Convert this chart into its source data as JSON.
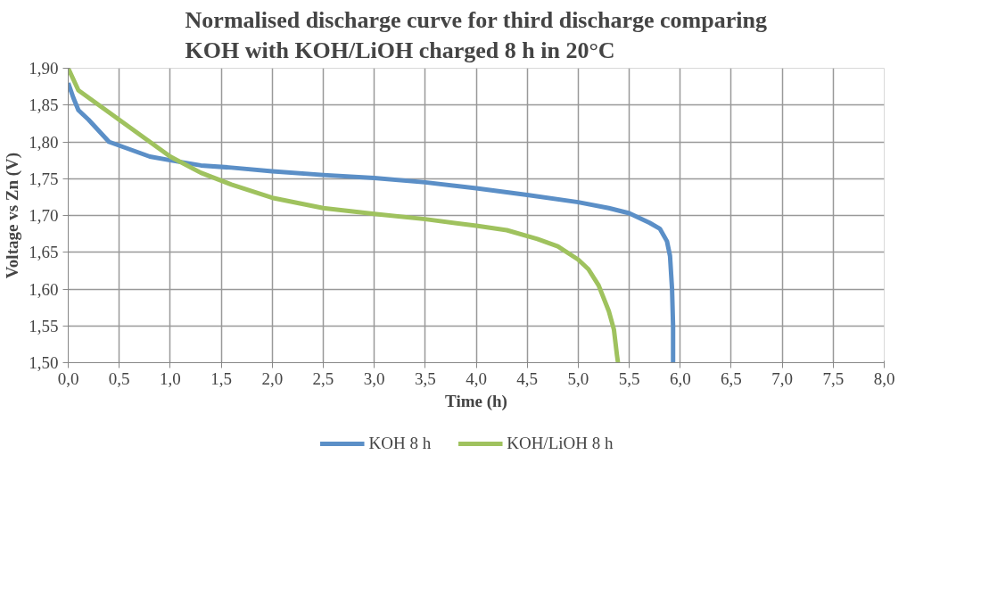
{
  "chart_data": {
    "type": "line",
    "title": "Normalised discharge curve for third discharge comparing\nKOH with KOH/LiOH charged 8 h in 20°C",
    "xlabel": "Time (h)",
    "ylabel": "Voltage vs Zn (V)",
    "xlim": [
      0,
      8
    ],
    "ylim": [
      1.5,
      1.9
    ],
    "xticks": [
      {
        "value": 0,
        "label": "0,0"
      },
      {
        "value": 0.5,
        "label": "0,5"
      },
      {
        "value": 1,
        "label": "1,0"
      },
      {
        "value": 1.5,
        "label": "1,5"
      },
      {
        "value": 2,
        "label": "2,0"
      },
      {
        "value": 2.5,
        "label": "2,5"
      },
      {
        "value": 3,
        "label": "3,0"
      },
      {
        "value": 3.5,
        "label": "3,5"
      },
      {
        "value": 4,
        "label": "4,0"
      },
      {
        "value": 4.5,
        "label": "4,5"
      },
      {
        "value": 5,
        "label": "5,0"
      },
      {
        "value": 5.5,
        "label": "5,5"
      },
      {
        "value": 6,
        "label": "6,0"
      },
      {
        "value": 6.5,
        "label": "6,5"
      },
      {
        "value": 7,
        "label": "7,0"
      },
      {
        "value": 7.5,
        "label": "7,5"
      },
      {
        "value": 8,
        "label": "8,0"
      }
    ],
    "yticks": [
      {
        "value": 1.5,
        "label": "1,50"
      },
      {
        "value": 1.55,
        "label": "1,55"
      },
      {
        "value": 1.6,
        "label": "1,60"
      },
      {
        "value": 1.65,
        "label": "1,65"
      },
      {
        "value": 1.7,
        "label": "1,70"
      },
      {
        "value": 1.75,
        "label": "1,75"
      },
      {
        "value": 1.8,
        "label": "1,80"
      },
      {
        "value": 1.85,
        "label": "1,85"
      },
      {
        "value": 1.9,
        "label": "1,90"
      }
    ],
    "grid": true,
    "legend": "bottom",
    "marker": "none",
    "line_style": "solid",
    "series": [
      {
        "name": "KOH 8 h",
        "color": "#5b8fc7",
        "x": [
          0,
          0.05,
          0.1,
          0.2,
          0.4,
          0.6,
          0.8,
          1.0,
          1.3,
          1.6,
          2.0,
          2.5,
          3.0,
          3.5,
          4.0,
          4.5,
          5.0,
          5.3,
          5.5,
          5.7,
          5.8,
          5.87,
          5.9,
          5.92,
          5.93,
          5.93
        ],
        "values": [
          1.88,
          1.86,
          1.843,
          1.83,
          1.8,
          1.79,
          1.78,
          1.775,
          1.768,
          1.765,
          1.76,
          1.755,
          1.751,
          1.745,
          1.737,
          1.728,
          1.718,
          1.71,
          1.703,
          1.69,
          1.682,
          1.665,
          1.645,
          1.6,
          1.55,
          1.5
        ]
      },
      {
        "name": "KOH/LiOH 8 h",
        "color": "#9fc25e",
        "x": [
          0,
          0.1,
          0.3,
          0.5,
          0.7,
          1.0,
          1.3,
          1.6,
          2.0,
          2.5,
          3.0,
          3.5,
          4.0,
          4.3,
          4.6,
          4.8,
          5.0,
          5.1,
          5.2,
          5.3,
          5.35,
          5.38,
          5.39
        ],
        "values": [
          1.9,
          1.87,
          1.85,
          1.83,
          1.81,
          1.78,
          1.758,
          1.742,
          1.724,
          1.71,
          1.702,
          1.695,
          1.686,
          1.68,
          1.668,
          1.658,
          1.64,
          1.627,
          1.605,
          1.57,
          1.545,
          1.51,
          1.5
        ]
      }
    ]
  }
}
